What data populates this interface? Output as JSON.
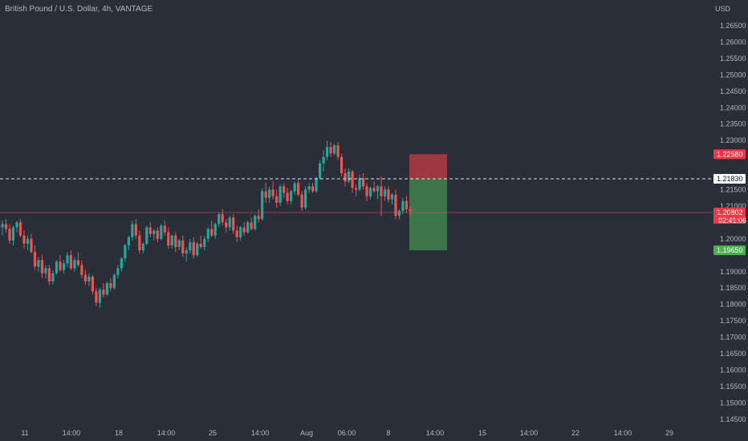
{
  "header": {
    "symbol_label": "British Pound / U.S. Dollar, 4h, VANTAGE",
    "currency": "USD"
  },
  "chart_data": {
    "type": "candlestick",
    "symbol": "British Pound / U.S. Dollar",
    "interval": "4h",
    "source": "VANTAGE",
    "y_unit": "USD",
    "ylim": [
      1.1425,
      1.2675
    ],
    "y_ticks": [
      1.265,
      1.26,
      1.255,
      1.25,
      1.245,
      1.24,
      1.235,
      1.23,
      1.215,
      1.21,
      1.2,
      1.19,
      1.185,
      1.18,
      1.175,
      1.17,
      1.165,
      1.16,
      1.155,
      1.15,
      1.145
    ],
    "y_tick_labels": [
      "1.26500",
      "1.26000",
      "1.25500",
      "1.25000",
      "1.24500",
      "1.24000",
      "1.23500",
      "1.23000",
      "1.21500",
      "1.21000",
      "1.20000",
      "1.19000",
      "1.18500",
      "1.18000",
      "1.17500",
      "1.17000",
      "1.16500",
      "1.16000",
      "1.15500",
      "1.15000",
      "1.14500"
    ],
    "x_ticks": [
      "11",
      "14:00",
      "18",
      "14:00",
      "25",
      "14:00",
      "Aug",
      "06:00",
      "8",
      "14:00",
      "15",
      "14:00",
      "22",
      "14:00",
      "29"
    ],
    "candles": [
      [
        1.2035,
        1.2055,
        1.201,
        1.2045
      ],
      [
        1.2045,
        1.206,
        1.202,
        1.203
      ],
      [
        1.203,
        1.2045,
        1.1985,
        1.1995
      ],
      [
        1.1995,
        1.204,
        1.198,
        1.2035
      ],
      [
        1.2035,
        1.2055,
        1.202,
        1.205
      ],
      [
        1.205,
        1.206,
        1.2005,
        1.201
      ],
      [
        1.201,
        1.2025,
        1.197,
        1.1985
      ],
      [
        1.1985,
        1.201,
        1.1965,
        1.2
      ],
      [
        1.2,
        1.2015,
        1.1955,
        1.196
      ],
      [
        1.196,
        1.198,
        1.1905,
        1.1915
      ],
      [
        1.1915,
        1.1945,
        1.19,
        1.1935
      ],
      [
        1.1935,
        1.195,
        1.188,
        1.1895
      ],
      [
        1.1895,
        1.192,
        1.188,
        1.191
      ],
      [
        1.191,
        1.192,
        1.186,
        1.187
      ],
      [
        1.187,
        1.1905,
        1.186,
        1.1895
      ],
      [
        1.1895,
        1.1935,
        1.189,
        1.193
      ],
      [
        1.193,
        1.195,
        1.19,
        1.1905
      ],
      [
        1.1905,
        1.1935,
        1.1895,
        1.1925
      ],
      [
        1.1925,
        1.196,
        1.1915,
        1.195
      ],
      [
        1.195,
        1.1965,
        1.1905,
        1.191
      ],
      [
        1.191,
        1.1945,
        1.19,
        1.1935
      ],
      [
        1.1935,
        1.196,
        1.1915,
        1.192
      ],
      [
        1.192,
        1.1935,
        1.188,
        1.189
      ],
      [
        1.189,
        1.1905,
        1.186,
        1.187
      ],
      [
        1.187,
        1.1895,
        1.1855,
        1.1885
      ],
      [
        1.1885,
        1.189,
        1.183,
        1.184
      ],
      [
        1.184,
        1.185,
        1.1795,
        1.1805
      ],
      [
        1.1805,
        1.185,
        1.179,
        1.1845
      ],
      [
        1.1845,
        1.1865,
        1.182,
        1.183
      ],
      [
        1.183,
        1.187,
        1.1825,
        1.1865
      ],
      [
        1.1865,
        1.188,
        1.184,
        1.185
      ],
      [
        1.185,
        1.1895,
        1.1845,
        1.189
      ],
      [
        1.189,
        1.192,
        1.188,
        1.191
      ],
      [
        1.191,
        1.1945,
        1.19,
        1.194
      ],
      [
        1.194,
        1.1985,
        1.193,
        1.198
      ],
      [
        1.198,
        1.201,
        1.1965,
        1.2005
      ],
      [
        1.2005,
        1.2055,
        1.1995,
        1.2045
      ],
      [
        1.2045,
        1.206,
        1.2,
        1.201
      ],
      [
        1.201,
        1.2025,
        1.1955,
        1.1965
      ],
      [
        1.1965,
        1.199,
        1.1955,
        1.1985
      ],
      [
        1.1985,
        1.204,
        1.198,
        1.2035
      ],
      [
        1.2035,
        1.205,
        1.2005,
        1.2015
      ],
      [
        1.2015,
        1.203,
        1.1995,
        1.2025
      ],
      [
        1.2025,
        1.2035,
        1.199,
        1.2
      ],
      [
        1.2,
        1.2045,
        1.1995,
        1.204
      ],
      [
        1.204,
        1.2055,
        1.201,
        1.202
      ],
      [
        1.202,
        1.2035,
        1.197,
        1.198
      ],
      [
        1.198,
        1.2015,
        1.197,
        1.201
      ],
      [
        1.201,
        1.202,
        1.196,
        1.1975
      ],
      [
        1.1975,
        1.2,
        1.1965,
        1.1995
      ],
      [
        1.1995,
        1.201,
        1.1945,
        1.1955
      ],
      [
        1.1955,
        1.1975,
        1.193,
        1.1965
      ],
      [
        1.1965,
        1.2,
        1.1955,
        1.199
      ],
      [
        1.199,
        1.2005,
        1.194,
        1.195
      ],
      [
        1.195,
        1.199,
        1.1945,
        1.1985
      ],
      [
        1.1985,
        1.201,
        1.197,
        1.1975
      ],
      [
        1.1975,
        1.201,
        1.1965,
        1.2
      ],
      [
        1.2,
        1.2035,
        1.199,
        1.203
      ],
      [
        1.203,
        1.2055,
        1.2005,
        1.201
      ],
      [
        1.201,
        1.205,
        1.2,
        1.2045
      ],
      [
        1.2045,
        1.208,
        1.2035,
        1.2075
      ],
      [
        1.2075,
        1.209,
        1.204,
        1.205
      ],
      [
        1.205,
        1.206,
        1.202,
        1.2035
      ],
      [
        1.2035,
        1.207,
        1.2025,
        1.2065
      ],
      [
        1.2065,
        1.2075,
        1.2015,
        1.2025
      ],
      [
        1.2025,
        1.204,
        1.199,
        1.2005
      ],
      [
        1.2005,
        1.204,
        1.1995,
        1.2035
      ],
      [
        1.2035,
        1.205,
        1.201,
        1.202
      ],
      [
        1.202,
        1.2055,
        1.2015,
        1.205
      ],
      [
        1.205,
        1.2065,
        1.2025,
        1.203
      ],
      [
        1.203,
        1.2075,
        1.2025,
        1.207
      ],
      [
        1.207,
        1.209,
        1.205,
        1.206
      ],
      [
        1.206,
        1.2155,
        1.2055,
        1.2145
      ],
      [
        1.2145,
        1.217,
        1.211,
        1.2125
      ],
      [
        1.2125,
        1.216,
        1.211,
        1.215
      ],
      [
        1.215,
        1.2175,
        1.212,
        1.213
      ],
      [
        1.213,
        1.215,
        1.2095,
        1.211
      ],
      [
        1.211,
        1.2165,
        1.21,
        1.216
      ],
      [
        1.216,
        1.217,
        1.2125,
        1.214
      ],
      [
        1.214,
        1.2155,
        1.2105,
        1.2115
      ],
      [
        1.2115,
        1.215,
        1.2105,
        1.2145
      ],
      [
        1.2145,
        1.2175,
        1.2135,
        1.217
      ],
      [
        1.217,
        1.218,
        1.213,
        1.2135
      ],
      [
        1.2135,
        1.2145,
        1.2085,
        1.2095
      ],
      [
        1.2095,
        1.216,
        1.209,
        1.215
      ],
      [
        1.215,
        1.217,
        1.214,
        1.216
      ],
      [
        1.216,
        1.217,
        1.214,
        1.2145
      ],
      [
        1.2145,
        1.219,
        1.214,
        1.2185
      ],
      [
        1.2185,
        1.224,
        1.218,
        1.223
      ],
      [
        1.223,
        1.227,
        1.2205,
        1.225
      ],
      [
        1.225,
        1.23,
        1.224,
        1.228
      ],
      [
        1.228,
        1.2295,
        1.225,
        1.226
      ],
      [
        1.226,
        1.229,
        1.2255,
        1.2285
      ],
      [
        1.2285,
        1.2295,
        1.224,
        1.225
      ],
      [
        1.225,
        1.226,
        1.219,
        1.22
      ],
      [
        1.22,
        1.2215,
        1.216,
        1.2175
      ],
      [
        1.2175,
        1.2215,
        1.217,
        1.2205
      ],
      [
        1.2205,
        1.221,
        1.214,
        1.2155
      ],
      [
        1.2155,
        1.2165,
        1.213,
        1.215
      ],
      [
        1.215,
        1.2195,
        1.2145,
        1.2185
      ],
      [
        1.2185,
        1.22,
        1.215,
        1.216
      ],
      [
        1.216,
        1.217,
        1.2115,
        1.213
      ],
      [
        1.213,
        1.216,
        1.212,
        1.2155
      ],
      [
        1.2155,
        1.2175,
        1.214,
        1.2145
      ],
      [
        1.2145,
        1.2165,
        1.212,
        1.216
      ],
      [
        1.216,
        1.219,
        1.207,
        1.213
      ],
      [
        1.213,
        1.216,
        1.2115,
        1.215
      ],
      [
        1.215,
        1.216,
        1.211,
        1.212
      ],
      [
        1.212,
        1.214,
        1.2105,
        1.2135
      ],
      [
        1.2135,
        1.215,
        1.206,
        1.207
      ],
      [
        1.207,
        1.209,
        1.206,
        1.2085
      ],
      [
        1.2085,
        1.2125,
        1.2075,
        1.2115
      ],
      [
        1.2115,
        1.213,
        1.208,
        1.209
      ],
      [
        1.209,
        1.21,
        1.207,
        1.2085
      ]
    ],
    "current_price": 1.20802,
    "countdown": "02:41:06",
    "entry_price": 1.2183,
    "stop_loss": 1.2258,
    "take_profit": 1.1965,
    "grid": false,
    "colors": {
      "up": "#26a69a",
      "down": "#ef5350",
      "background": "#2a2e39",
      "stop_zone": "#b33a3f",
      "target_zone": "#3f7d4c",
      "stop_badge": "#f23645",
      "target_badge": "#4caf50"
    }
  },
  "badges": {
    "stop": "1.22580",
    "entry": "1.21830",
    "price": "1.20802",
    "countdown": "02:41:06",
    "target": "1.19650"
  }
}
